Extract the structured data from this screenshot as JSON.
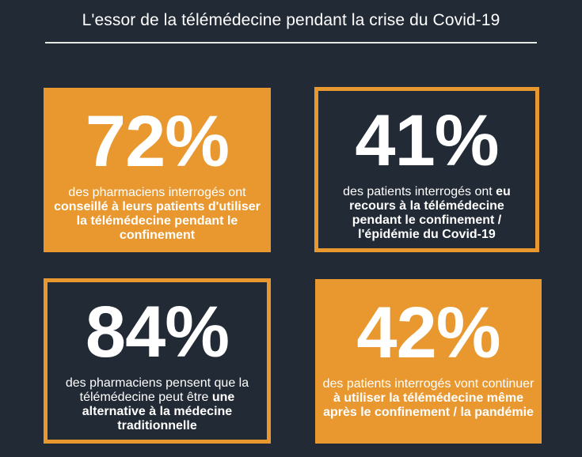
{
  "title": "L'essor de la télémédecine pendant la crise du Covid-19",
  "colors": {
    "background": "#222a35",
    "accent": "#e9982f",
    "text": "#ffffff"
  },
  "cards": [
    {
      "stat": "72%",
      "style": "filled",
      "text_plain_1": "des pharmaciens interrogés ont ",
      "text_bold_1": "conseillé à leurs patients d'utiliser la télémédecine pendant le confinement",
      "text_plain_2": ""
    },
    {
      "stat": "41%",
      "style": "outline",
      "text_plain_1": "des patients interrogés ont ",
      "text_bold_1": "eu recours à la télémédecine pendant le confinement / l'épidémie du Covid-19",
      "text_plain_2": ""
    },
    {
      "stat": "84%",
      "style": "outline",
      "text_plain_1": "des pharmaciens pensent que la télémédecine peut être ",
      "text_bold_1": "une alternative à la médecine traditionnelle",
      "text_plain_2": ""
    },
    {
      "stat": "42%",
      "style": "filled",
      "text_plain_1": "des patients interrogés vont continuer ",
      "text_bold_1": "à utiliser la télémédecine même après le confinement / la pandémie",
      "text_plain_2": ""
    }
  ]
}
